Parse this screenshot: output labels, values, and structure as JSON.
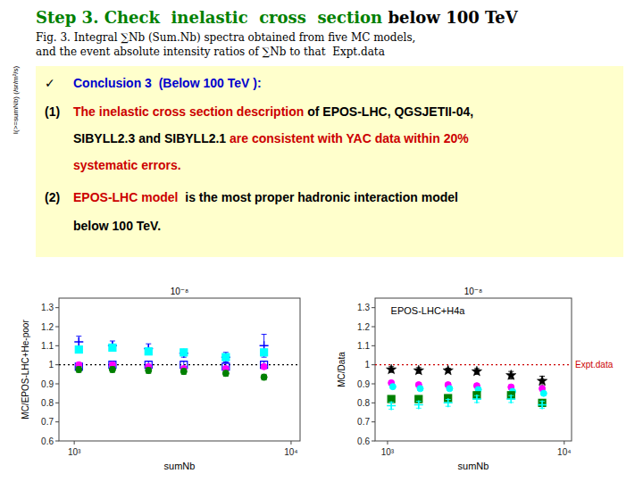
{
  "title": [
    {
      "text": "Step 3. Check  inelastic  cross  section",
      "color": "#008000"
    },
    {
      "text": " below 100 TeV",
      "color": "#000000"
    }
  ],
  "subtitle": [
    "Fig. 3. Integral ∑Nb (Sum.Nb) spectra obtained from five MC models,",
    "and the event absolute intensity ratios of ∑Nb to that  Expt.data"
  ],
  "side_label": "I(>=sumNb) (/sr/m²/s)",
  "annotations": {
    "color": "#ffffcc",
    "rows": [
      {
        "label": "✓",
        "segments": [
          {
            "text": "Conclusion 3  (Below 100 TeV ):",
            "color": "#0000cc"
          }
        ]
      },
      {
        "label": "(1)",
        "segments": [
          {
            "text": "The inelastic cross section description",
            "color": "#cc0000"
          },
          {
            "text": " of EPOS-LHC, QGSJETII-04,",
            "color": "#000000"
          }
        ]
      },
      {
        "segments": [
          {
            "text": "SIBYLL2.3 and SIBYLL2.1 ",
            "color": "#000000"
          },
          {
            "text": "are consistent with YAC data within 20%",
            "color": "#cc0000"
          }
        ]
      },
      {
        "segments": [
          {
            "text": "systematic errors.",
            "color": "#cc0000"
          }
        ]
      },
      {
        "label": "(2)",
        "segments": [
          {
            "text": "EPOS-LHC model",
            "color": "#cc0000"
          },
          {
            "text": "  is the most proper hadronic interaction model",
            "color": "#000000"
          }
        ]
      },
      {
        "segments": [
          {
            "text": "below 100 TeV.",
            "color": "#000000"
          }
        ]
      }
    ]
  },
  "chart_data": [
    {
      "type": "scatter",
      "log": "x",
      "grid": false,
      "xlabel": "sumNb",
      "ylabel": "MC/EPOS-LHC+He-poor",
      "xlim": [
        850,
        11000
      ],
      "ylim": [
        0.6,
        1.35
      ],
      "xticks": [
        {
          "value": 1000,
          "label": "10³"
        },
        {
          "value": 10000,
          "label": "10⁴"
        }
      ],
      "yticks": [
        0.6,
        0.7,
        0.8,
        0.9,
        1,
        1.1,
        1.2,
        1.3
      ],
      "annotations": [
        "10⁻⁸"
      ],
      "hlines": [
        {
          "value": 1.0,
          "color": "#000000",
          "line_style": "dotted"
        }
      ],
      "x": [
        1050,
        1500,
        2200,
        3200,
        5000,
        7500
      ],
      "series": [
        {
          "color": "blue",
          "marker": "open-square",
          "values": [
            0.99,
            1.0,
            1.0,
            1.0,
            0.99,
            1.0
          ],
          "errors": 0.018
        },
        {
          "color": "blue",
          "marker": "plus",
          "values": [
            1.12,
            1.1,
            1.085,
            1.06,
            1.04,
            1.1
          ],
          "errors": [
            0.03,
            0.025,
            0.025,
            0.02,
            0.025,
            0.06
          ]
        },
        {
          "color": "cyan",
          "marker": "square",
          "values": [
            1.08,
            1.09,
            1.07,
            1.065,
            1.04,
            1.065
          ],
          "errors": 0.015
        },
        {
          "color": "magenta",
          "marker": "circle",
          "values": [
            1.0,
            1.0,
            0.99,
            0.98,
            0.98,
            0.99
          ],
          "errors": 0.012
        },
        {
          "color": "green",
          "marker": "circle",
          "values": [
            0.975,
            0.975,
            0.97,
            0.965,
            0.955,
            0.935
          ],
          "errors": 0.015
        }
      ]
    },
    {
      "type": "scatter",
      "log": "x",
      "grid": false,
      "xlabel": "sumNb",
      "ylabel": "MC/Data",
      "xlim": [
        850,
        11000
      ],
      "ylim": [
        0.6,
        1.35
      ],
      "xticks": [
        {
          "value": 1000,
          "label": "10³"
        },
        {
          "value": 10000,
          "label": "10⁴"
        }
      ],
      "yticks": [
        0.6,
        0.7,
        0.8,
        0.9,
        1,
        1.1,
        1.2,
        1.3
      ],
      "annotations": [
        "10⁻⁸",
        "EPOS-LHC+H4a"
      ],
      "hlines": [
        {
          "value": 1.0,
          "color": "#cc0000",
          "line_style": "dotted",
          "label": "Expt.data"
        }
      ],
      "segments": [
        {
          "x": 7200,
          "ymin": 0.78,
          "ymax": 0.8,
          "color": "#000000"
        }
      ],
      "x": [
        1050,
        1500,
        2200,
        3200,
        5000,
        7500
      ],
      "series": [
        {
          "color": "black",
          "marker": "star",
          "values": [
            0.975,
            0.97,
            0.97,
            0.965,
            0.945,
            0.915
          ],
          "errors": [
            0.015,
            0.015,
            0.012,
            0.015,
            0.02,
            0.025
          ]
        },
        {
          "color": "magenta",
          "marker": "circle",
          "values": [
            0.905,
            0.895,
            0.895,
            0.89,
            0.883,
            0.875
          ],
          "errors": 0.012
        },
        {
          "color": "cyan",
          "marker": "circle",
          "x": [
            1071,
            1530,
            2244,
            3264,
            5100,
            7650
          ],
          "values": [
            0.885,
            0.875,
            0.875,
            0.87,
            0.86,
            0.85
          ],
          "errors": 0.01
        },
        {
          "color": "green",
          "marker": "square",
          "values": [
            0.82,
            0.82,
            0.825,
            0.84,
            0.84,
            0.8
          ],
          "errors": 0.015
        },
        {
          "color": "cyan",
          "marker": "plus",
          "values": [
            0.785,
            0.79,
            0.8,
            0.82,
            0.82,
            0.79
          ],
          "errors": 0.018
        }
      ]
    }
  ]
}
